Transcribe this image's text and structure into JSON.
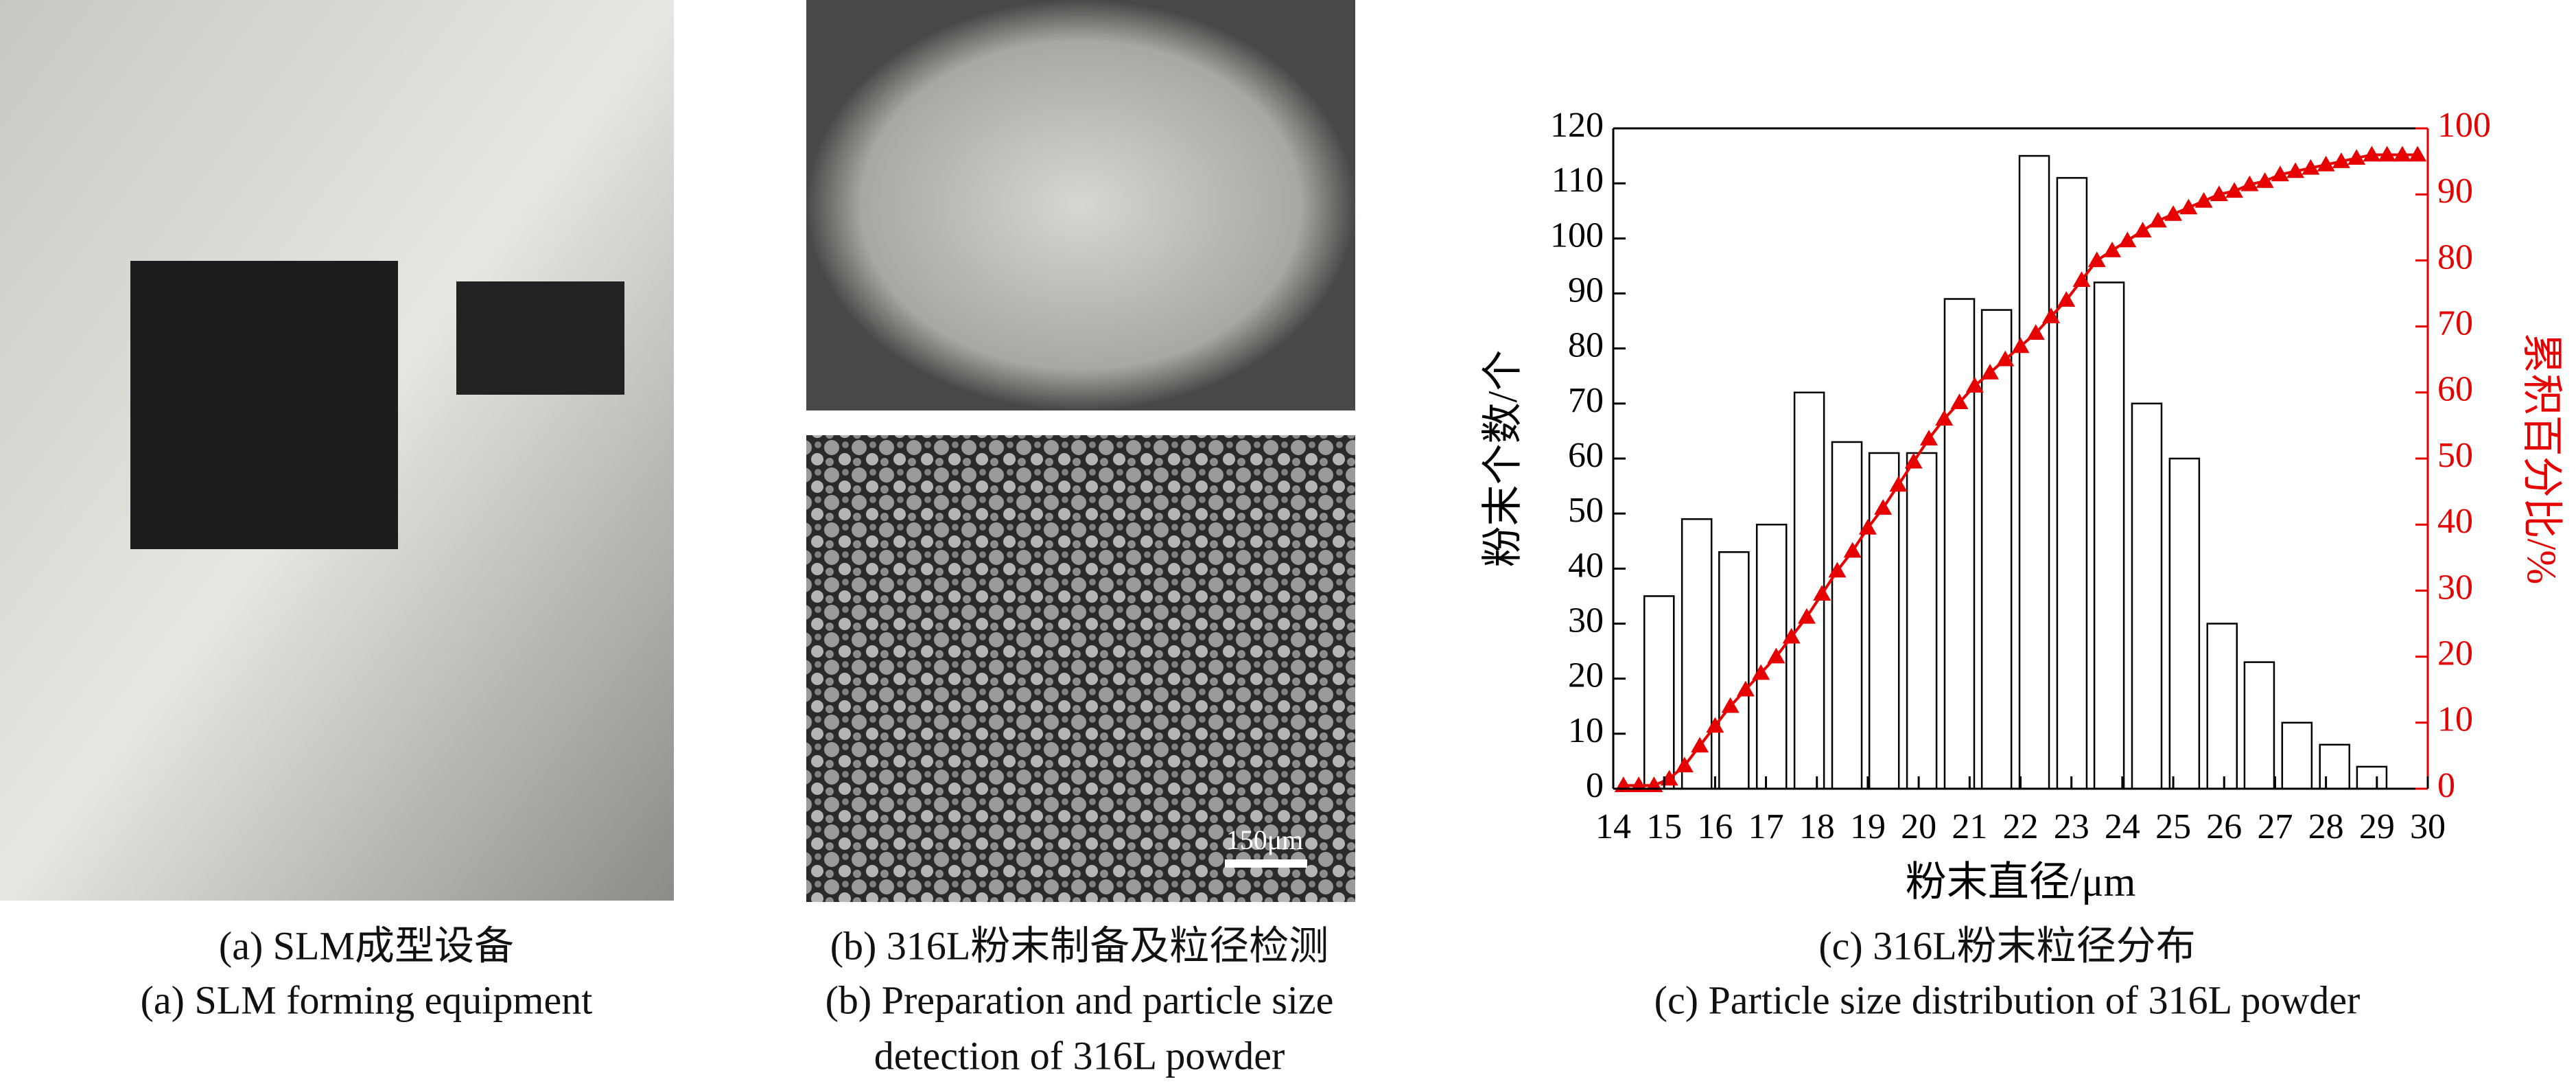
{
  "panels": [
    {
      "caption": [
        "(a) SLM成型设备",
        "(a) SLM forming equipment"
      ]
    },
    {
      "caption": [
        "(b) 316L粉末制备及粒径检测",
        "(b) Preparation and particle size",
        "detection of 316L powder"
      ],
      "scale_bar": "150μm"
    },
    {
      "caption": [
        "(c) 316L粉末粒径分布",
        "(c) Particle size distribution of 316L powder"
      ]
    }
  ],
  "chart_data": {
    "type": "bar",
    "x_label": "粉末直径/μm",
    "y_label": "粉末个数/个",
    "y2_label": "累积百分比/%",
    "xlim": [
      14,
      30
    ],
    "xticks": [
      14,
      15,
      16,
      17,
      18,
      19,
      20,
      21,
      22,
      23,
      24,
      25,
      26,
      27,
      28,
      29,
      30
    ],
    "ylim": [
      0,
      120
    ],
    "yticks": [
      0,
      10,
      20,
      30,
      40,
      50,
      60,
      70,
      80,
      90,
      100,
      110,
      120
    ],
    "y2lim": [
      0,
      100
    ],
    "y2ticks": [
      0,
      10,
      20,
      30,
      40,
      50,
      60,
      70,
      80,
      90,
      100
    ],
    "series": [
      {
        "type": "bar",
        "color": "#ffffff",
        "x": [
          14.9,
          15.64,
          16.37,
          17.11,
          17.85,
          18.59,
          19.32,
          20.06,
          20.8,
          21.53,
          22.27,
          23.01,
          23.74,
          24.48,
          25.22,
          25.96,
          26.69,
          27.43,
          28.17,
          28.9
        ],
        "values": [
          35,
          49,
          43,
          48,
          72,
          63,
          61,
          61,
          89,
          87,
          115,
          111,
          92,
          70,
          60,
          30,
          23,
          12,
          8,
          4
        ]
      },
      {
        "type": "line",
        "axis": "y2",
        "color": "#e60000",
        "marker": "triangle",
        "x": [
          14.2,
          14.5,
          14.8,
          15.1,
          15.4,
          15.7,
          16.0,
          16.3,
          16.6,
          16.9,
          17.2,
          17.5,
          17.8,
          18.1,
          18.4,
          18.7,
          19.0,
          19.3,
          19.6,
          19.9,
          20.2,
          20.5,
          20.8,
          21.1,
          21.4,
          21.7,
          22.0,
          22.3,
          22.6,
          22.9,
          23.2,
          23.5,
          23.8,
          24.1,
          24.4,
          24.7,
          25.0,
          25.3,
          25.6,
          25.9,
          26.2,
          26.5,
          26.8,
          27.1,
          27.4,
          27.7,
          28.0,
          28.3,
          28.6,
          28.9,
          29.2,
          29.5,
          29.8
        ],
        "values": [
          0.5,
          0.5,
          0.5,
          1.5,
          3.5,
          6.5,
          9.5,
          12.5,
          15,
          17.5,
          20,
          23,
          26,
          29.5,
          33,
          36,
          39.5,
          42.5,
          46,
          49.5,
          53,
          56,
          58.5,
          61,
          63,
          65,
          67,
          69,
          71.5,
          74,
          77,
          80,
          81.5,
          83,
          84.5,
          86,
          87,
          88,
          89,
          90,
          90.5,
          91.5,
          92,
          93,
          93.5,
          94,
          94.5,
          95,
          95.5,
          96,
          96,
          96,
          96
        ]
      }
    ]
  }
}
